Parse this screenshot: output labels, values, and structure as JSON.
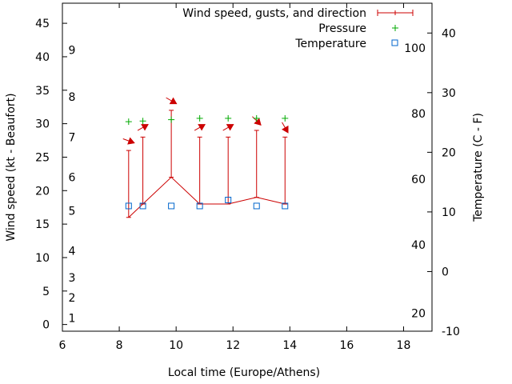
{
  "chart_data": {
    "type": "line",
    "xlabel": "Local time (Europe/Athens)",
    "ylabel": "Wind speed (kt - Beaufort)",
    "y2label": "Temperature (C - F)",
    "xlim": [
      6,
      19
    ],
    "ylim": [
      -1,
      48
    ],
    "y2lim": [
      -10,
      45
    ],
    "grid": false,
    "legend_position": "top-right",
    "x_ticks": [
      "6",
      "8",
      "10",
      "12",
      "14",
      "16",
      "18"
    ],
    "y_ticks": [
      "0",
      "5",
      "10",
      "15",
      "20",
      "25",
      "30",
      "35",
      "40",
      "45"
    ],
    "y2_ticks": [
      "-10",
      "0",
      "10",
      "20",
      "30",
      "40"
    ],
    "beaufort_labels": [
      {
        "text": "1",
        "y": 1
      },
      {
        "text": "2",
        "y": 4
      },
      {
        "text": "3",
        "y": 7
      },
      {
        "text": "4",
        "y": 11
      },
      {
        "text": "5",
        "y": 17
      },
      {
        "text": "6",
        "y": 22
      },
      {
        "text": "7",
        "y": 28
      },
      {
        "text": "8",
        "y": 34
      },
      {
        "text": "9",
        "y": 41
      }
    ],
    "fahrenheit_labels": [
      {
        "text": "20",
        "y2": -7
      },
      {
        "text": "40",
        "y2": 4.5
      },
      {
        "text": "60",
        "y2": 15.5
      },
      {
        "text": "80",
        "y2": 26.5
      },
      {
        "text": "100",
        "y2": 37.5
      }
    ],
    "series": [
      {
        "name": "Wind speed, gusts, and direction",
        "color": "#cc0000",
        "x": [
          8.33,
          8.83,
          9.83,
          10.83,
          11.83,
          12.83,
          13.83
        ],
        "values": [
          16,
          18,
          22,
          18,
          18,
          19,
          18
        ],
        "gusts": [
          26,
          28,
          32,
          28,
          28,
          29,
          28
        ],
        "direction_deg": [
          290,
          240,
          300,
          240,
          240,
          315,
          330
        ]
      },
      {
        "name": "Pressure",
        "color": "#00aa00",
        "x": [
          8.33,
          8.83,
          9.83,
          10.83,
          11.83,
          12.83,
          13.83
        ],
        "values": [
          30.3,
          30.4,
          30.6,
          30.8,
          30.8,
          30.8,
          30.8
        ]
      },
      {
        "name": "Temperature",
        "color": "#0066cc",
        "axis": "y2",
        "x": [
          8.33,
          8.83,
          9.83,
          10.83,
          11.83,
          12.83,
          13.83
        ],
        "values": [
          11,
          11,
          11,
          11,
          12,
          11,
          11
        ]
      }
    ]
  }
}
